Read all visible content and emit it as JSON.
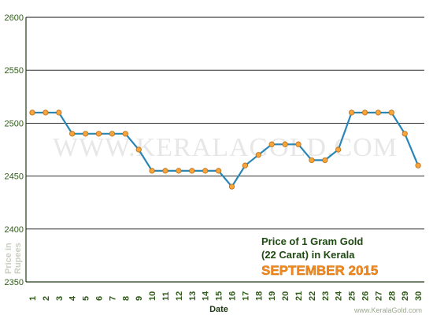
{
  "chart_data": {
    "type": "line",
    "title_lines": [
      "Price of 1 Gram Gold",
      "(22 Carat) in Kerala"
    ],
    "subtitle": "SEPTEMBER 2015",
    "xlabel": "Date",
    "ylabel_lines": [
      "Price in",
      "Rupees"
    ],
    "watermark": "WWW.KERALAGOLD.COM",
    "credit": "www.KeralaGold.com",
    "x": [
      "1",
      "2",
      "3",
      "4",
      "5",
      "6",
      "7",
      "8",
      "9",
      "10",
      "11",
      "12",
      "13",
      "14",
      "15",
      "16",
      "17",
      "18",
      "19",
      "20",
      "21",
      "22",
      "23",
      "24",
      "25",
      "26",
      "27",
      "28",
      "29",
      "30"
    ],
    "series": [
      {
        "values": [
          2510,
          2510,
          2510,
          2490,
          2490,
          2490,
          2490,
          2490,
          2475,
          2455,
          2455,
          2455,
          2455,
          2455,
          2455,
          2440,
          2460,
          2470,
          2480,
          2480,
          2480,
          2465,
          2465,
          2475,
          2510,
          2510,
          2510,
          2510,
          2490,
          2460
        ]
      }
    ],
    "ylim": [
      2350,
      2600
    ],
    "yticks": [
      2350,
      2400,
      2450,
      2500,
      2550,
      2600
    ],
    "grid": "horizontal",
    "colors": {
      "line": "#2a86b5",
      "marker": "#f7a53b",
      "marker_stroke": "#b96a12",
      "axis": "#1f3a14",
      "tick_text": "#2f5a1a",
      "grid": "#111111",
      "title": "#1f4a12",
      "subtitle": "#f28a1d",
      "ylabel": "#c9cfc0",
      "watermark": "#e7e7e7"
    }
  }
}
